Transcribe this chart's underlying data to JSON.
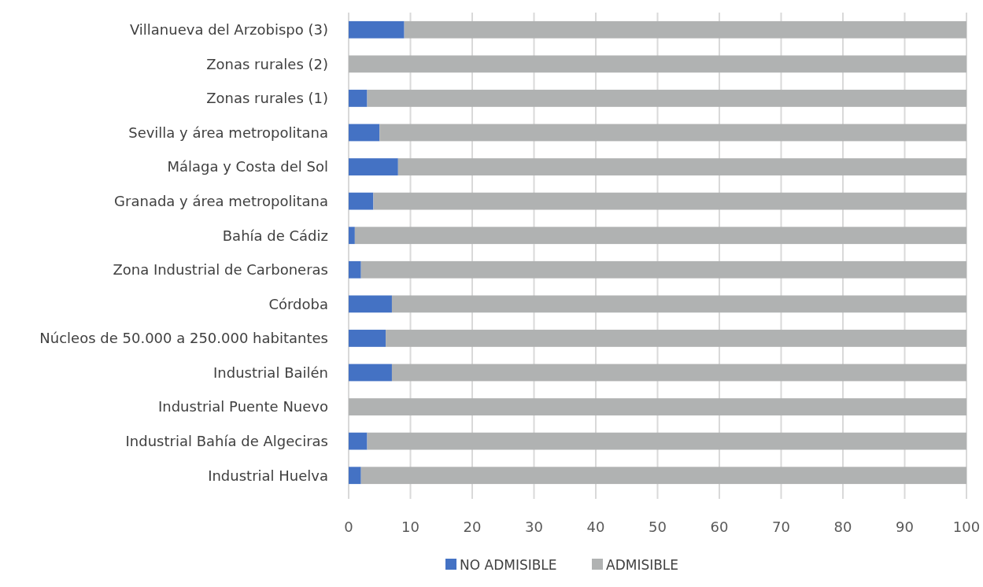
{
  "chart_data": {
    "type": "bar",
    "orientation": "horizontal",
    "stacked": true,
    "categories": [
      "Villanueva del Arzobispo (3)",
      "Zonas rurales (2)",
      "Zonas rurales (1)",
      "Sevilla y área metropolitana",
      "Málaga y Costa del Sol",
      "Granada y área metropolitana",
      "Bahía de Cádiz",
      "Zona Industrial de Carboneras",
      "Córdoba",
      "Núcleos de 50.000 a 250.000 habitantes",
      "Industrial Bailén",
      "Industrial Puente Nuevo",
      "Industrial Bahía de Algeciras",
      "Industrial Huelva"
    ],
    "series": [
      {
        "name": "NO ADMISIBLE",
        "color": "#4472c4",
        "values": [
          9,
          0,
          3,
          5,
          8,
          4,
          1,
          2,
          7,
          6,
          7,
          0,
          3,
          2
        ]
      },
      {
        "name": "ADMISIBLE",
        "color": "#b0b2b2",
        "values": [
          91,
          100,
          97,
          95,
          92,
          96,
          99,
          98,
          93,
          94,
          93,
          100,
          97,
          98
        ]
      }
    ],
    "xlim": [
      0,
      100
    ],
    "xticks": [
      0,
      10,
      20,
      30,
      40,
      50,
      60,
      70,
      80,
      90,
      100
    ],
    "grid": "x",
    "legend": "bottom"
  }
}
